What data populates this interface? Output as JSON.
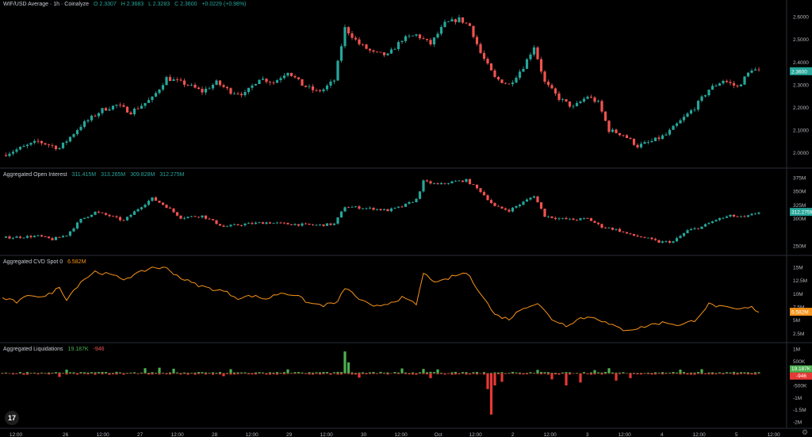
{
  "header": {
    "symbol": "WIF/USD Average · 1h · Coinalyze",
    "open": "O 2.3307",
    "high": "H 2.3683",
    "low": "L 2.3283",
    "close": "C 2.3600",
    "change": "+0.0229 (+0.98%)"
  },
  "oi_header": {
    "label": "Aggregated Open Interest",
    "values": [
      "311.415M",
      "313.265M",
      "309.828M",
      "312.275M"
    ]
  },
  "cvd_header": {
    "label": "Aggregated CVD Spot 0",
    "value": "6.582M"
  },
  "liq_header": {
    "label": "Aggregated Liquidations",
    "long": "19.187K",
    "short": "-946"
  },
  "colors": {
    "up": "#26a69a",
    "down": "#ef5350",
    "cvd": "#f7931a",
    "liq_up": "#4caf50",
    "liq_down": "#e53935",
    "bg": "#000000"
  },
  "icons": {
    "logo": "tradingview-logo-icon",
    "settings": "gear-icon"
  },
  "chart_data": [
    {
      "type": "candlestick",
      "title": "WIF/USD Average · 1h · Coinalyze",
      "y_ticks": [
        "2.6000",
        "2.5000",
        "2.4000",
        "2.3000",
        "2.2000",
        "2.1000",
        "2.0000"
      ],
      "y_tick_values": [
        2.6,
        2.5,
        2.4,
        2.3,
        2.2,
        2.1,
        2.0
      ],
      "ylim": [
        1.95,
        2.66
      ],
      "last_value": "2.3600",
      "close_path": [
        [
          0,
          1.99
        ],
        [
          10,
          2.05
        ],
        [
          16,
          2.02
        ],
        [
          22,
          2.12
        ],
        [
          28,
          2.19
        ],
        [
          32,
          2.21
        ],
        [
          36,
          2.18
        ],
        [
          42,
          2.24
        ],
        [
          46,
          2.33
        ],
        [
          52,
          2.3
        ],
        [
          56,
          2.27
        ],
        [
          60,
          2.31
        ],
        [
          64,
          2.27
        ],
        [
          68,
          2.26
        ],
        [
          72,
          2.33
        ],
        [
          76,
          2.31
        ],
        [
          80,
          2.36
        ],
        [
          84,
          2.3
        ],
        [
          88,
          2.27
        ],
        [
          90,
          2.28
        ],
        [
          93,
          2.32
        ],
        [
          96,
          2.55
        ],
        [
          100,
          2.48
        ],
        [
          104,
          2.44
        ],
        [
          108,
          2.43
        ],
        [
          112,
          2.5
        ],
        [
          116,
          2.52
        ],
        [
          120,
          2.48
        ],
        [
          124,
          2.57
        ],
        [
          128,
          2.59
        ],
        [
          131,
          2.56
        ],
        [
          134,
          2.44
        ],
        [
          138,
          2.33
        ],
        [
          142,
          2.3
        ],
        [
          146,
          2.38
        ],
        [
          149,
          2.47
        ],
        [
          152,
          2.31
        ],
        [
          156,
          2.24
        ],
        [
          160,
          2.2
        ],
        [
          164,
          2.25
        ],
        [
          167,
          2.22
        ],
        [
          170,
          2.1
        ],
        [
          174,
          2.08
        ],
        [
          178,
          2.03
        ],
        [
          182,
          2.05
        ],
        [
          186,
          2.08
        ],
        [
          190,
          2.14
        ],
        [
          194,
          2.2
        ],
        [
          198,
          2.28
        ],
        [
          202,
          2.32
        ],
        [
          206,
          2.29
        ],
        [
          210,
          2.37
        ],
        [
          212,
          2.36
        ]
      ]
    },
    {
      "type": "candlestick",
      "title": "Aggregated Open Interest",
      "y_ticks": [
        "375M",
        "350M",
        "325M",
        "300M",
        "250M"
      ],
      "y_tick_values": [
        375,
        350,
        325,
        300,
        250
      ],
      "ylim": [
        240,
        385
      ],
      "last_value": "312.275M",
      "close_path": [
        [
          0,
          265
        ],
        [
          10,
          268
        ],
        [
          14,
          262
        ],
        [
          18,
          270
        ],
        [
          22,
          298
        ],
        [
          26,
          312
        ],
        [
          30,
          305
        ],
        [
          34,
          296
        ],
        [
          38,
          318
        ],
        [
          42,
          337
        ],
        [
          46,
          322
        ],
        [
          50,
          302
        ],
        [
          56,
          305
        ],
        [
          62,
          285
        ],
        [
          68,
          290
        ],
        [
          74,
          293
        ],
        [
          80,
          290
        ],
        [
          88,
          288
        ],
        [
          93,
          290
        ],
        [
          96,
          322
        ],
        [
          100,
          320
        ],
        [
          104,
          318
        ],
        [
          108,
          315
        ],
        [
          112,
          322
        ],
        [
          116,
          335
        ],
        [
          118,
          368
        ],
        [
          122,
          362
        ],
        [
          126,
          367
        ],
        [
          130,
          370
        ],
        [
          134,
          350
        ],
        [
          138,
          322
        ],
        [
          142,
          315
        ],
        [
          146,
          330
        ],
        [
          149,
          342
        ],
        [
          152,
          305
        ],
        [
          156,
          300
        ],
        [
          160,
          298
        ],
        [
          164,
          300
        ],
        [
          168,
          285
        ],
        [
          172,
          280
        ],
        [
          176,
          270
        ],
        [
          180,
          265
        ],
        [
          184,
          257
        ],
        [
          188,
          258
        ],
        [
          192,
          278
        ],
        [
          196,
          285
        ],
        [
          200,
          298
        ],
        [
          204,
          305
        ],
        [
          208,
          302
        ],
        [
          212,
          312
        ]
      ]
    },
    {
      "type": "line",
      "title": "Aggregated CVD Spot 0",
      "y_ticks": [
        "15M",
        "12.5M",
        "10M",
        "7.5M",
        "5M",
        "2.5M"
      ],
      "y_tick_values": [
        15,
        12.5,
        10,
        7.5,
        5,
        2.5
      ],
      "ylim": [
        1.5,
        16.5
      ],
      "last_value": "6.582M",
      "points": [
        [
          0,
          9.2
        ],
        [
          4,
          8.4
        ],
        [
          8,
          9.8
        ],
        [
          12,
          9.4
        ],
        [
          16,
          11.2
        ],
        [
          18,
          9.0
        ],
        [
          22,
          12.3
        ],
        [
          26,
          14.2
        ],
        [
          30,
          13.6
        ],
        [
          34,
          12.8
        ],
        [
          38,
          13.8
        ],
        [
          42,
          15.0
        ],
        [
          46,
          14.8
        ],
        [
          50,
          13.0
        ],
        [
          54,
          11.8
        ],
        [
          58,
          11.0
        ],
        [
          62,
          10.5
        ],
        [
          66,
          9.2
        ],
        [
          70,
          9.6
        ],
        [
          74,
          9.0
        ],
        [
          78,
          10.2
        ],
        [
          82,
          9.8
        ],
        [
          86,
          8.2
        ],
        [
          90,
          7.8
        ],
        [
          94,
          8.4
        ],
        [
          96,
          11.2
        ],
        [
          100,
          9.0
        ],
        [
          104,
          7.4
        ],
        [
          108,
          8.2
        ],
        [
          112,
          9.2
        ],
        [
          116,
          8.0
        ],
        [
          118,
          13.8
        ],
        [
          122,
          12.0
        ],
        [
          126,
          13.2
        ],
        [
          130,
          14.0
        ],
        [
          134,
          10.2
        ],
        [
          138,
          6.0
        ],
        [
          142,
          5.2
        ],
        [
          146,
          7.4
        ],
        [
          150,
          8.2
        ],
        [
          154,
          5.2
        ],
        [
          158,
          4.0
        ],
        [
          162,
          5.4
        ],
        [
          166,
          5.6
        ],
        [
          170,
          4.2
        ],
        [
          174,
          3.2
        ],
        [
          178,
          3.4
        ],
        [
          182,
          4.2
        ],
        [
          186,
          4.6
        ],
        [
          190,
          4.0
        ],
        [
          194,
          5.0
        ],
        [
          198,
          8.0
        ],
        [
          202,
          7.4
        ],
        [
          206,
          7.0
        ],
        [
          210,
          7.4
        ],
        [
          212,
          6.6
        ]
      ]
    },
    {
      "type": "bar",
      "title": "Aggregated Liquidations",
      "y_ticks": [
        "1M",
        "500K",
        "0",
        "-500K",
        "-1M",
        "-1.5M",
        "-2M"
      ],
      "y_tick_values": [
        1000000,
        500000,
        0,
        -500000,
        -1000000,
        -1500000,
        -2000000
      ],
      "ylim": [
        -2100000,
        1100000
      ],
      "long_value": "19.187K",
      "short_value": "-946",
      "long_spikes": [
        [
          18,
          150000
        ],
        [
          40,
          210000
        ],
        [
          44,
          230000
        ],
        [
          48,
          190000
        ],
        [
          64,
          170000
        ],
        [
          80,
          160000
        ],
        [
          96,
          900000
        ],
        [
          97,
          450000
        ],
        [
          112,
          200000
        ],
        [
          118,
          180000
        ],
        [
          122,
          160000
        ],
        [
          150,
          140000
        ],
        [
          166,
          130000
        ],
        [
          170,
          210000
        ],
        [
          190,
          150000
        ],
        [
          196,
          170000
        ]
      ],
      "short_spikes": [
        [
          16,
          -150000
        ],
        [
          62,
          -120000
        ],
        [
          100,
          -180000
        ],
        [
          120,
          -200000
        ],
        [
          136,
          -650000
        ],
        [
          137,
          -1700000
        ],
        [
          138,
          -500000
        ],
        [
          140,
          -350000
        ],
        [
          154,
          -250000
        ],
        [
          158,
          -500000
        ],
        [
          162,
          -380000
        ],
        [
          172,
          -300000
        ],
        [
          176,
          -200000
        ]
      ]
    }
  ],
  "x_axis": {
    "ticks": [
      "12:00",
      "26",
      "12:00",
      "27",
      "12:00",
      "28",
      "12:00",
      "29",
      "12:00",
      "30",
      "12:00",
      "Oct",
      "12:00",
      "2",
      "12:00",
      "3",
      "12:00",
      "4",
      "12:00",
      "5",
      "12:00"
    ],
    "tick_index": [
      0,
      16,
      28,
      40,
      52,
      64,
      76,
      88,
      100,
      112,
      124,
      136,
      148,
      160,
      172,
      184,
      196,
      208,
      220,
      232,
      244
    ]
  }
}
